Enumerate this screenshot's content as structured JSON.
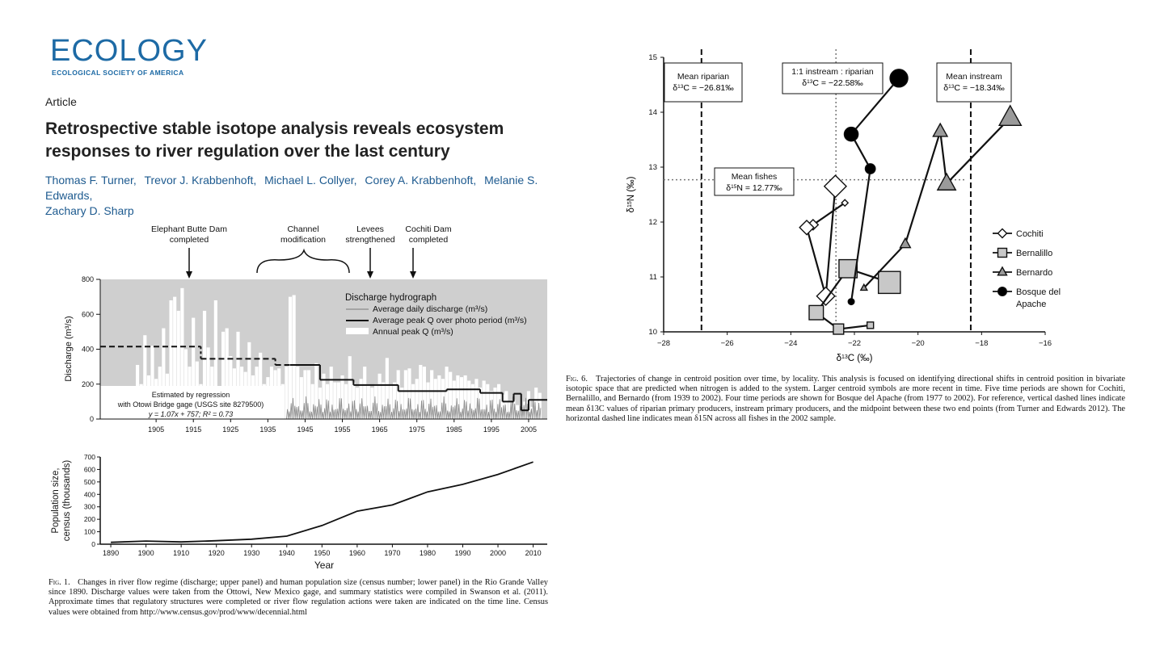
{
  "journal": {
    "logo_text": "ECOLOGY",
    "logo_sub": "ECOLOGICAL SOCIETY OF AMERICA",
    "brand_color": "#1d6aa5"
  },
  "article": {
    "type": "Article",
    "title": "Retrospective stable isotope analysis reveals ecosystem responses to river regulation over the last century",
    "authors": [
      "Thomas F. Turner,",
      "Trevor J. Krabbenhoft,",
      "Michael L. Collyer,",
      "Corey A. Krabbenhoft,",
      "Melanie S. Edwards,",
      "Zachary D. Sharp"
    ]
  },
  "chart_data": [
    {
      "type": "bar",
      "xlim": [
        1890,
        2010
      ],
      "ylim": [
        0,
        800
      ],
      "ylabel": "Discharge (m³/s)",
      "x_ticks": [
        "1905",
        "1915",
        "1925",
        "1935",
        "1945",
        "1955",
        "1965",
        "1975",
        "1985",
        "1995",
        "2005"
      ],
      "y_ticks": [
        "0",
        "200",
        "400",
        "600",
        "800"
      ],
      "annotations": [
        "Elephant Butte Dam completed",
        "Channel modification",
        "Levees strengthened",
        "Cochiti Dam completed"
      ],
      "annotation_years": [
        1917,
        1941,
        1963,
        1973
      ],
      "legend_title": "Discharge hydrograph",
      "legend": [
        "Average daily discharge (m³/s)",
        "Average peak Q over photo period (m³/s)",
        "Annual peak Q (m³/s)"
      ],
      "inset_text": [
        "Estimated by regression",
        "with Otowi Bridge gage (USGS site 8279500)",
        "y = 1.07x + 757; R² = 0.73"
      ],
      "annual_peak_q": {
        "years": [
          1900,
          1901,
          1902,
          1903,
          1904,
          1905,
          1906,
          1907,
          1908,
          1909,
          1910,
          1911,
          1912,
          1913,
          1914,
          1915,
          1916,
          1917,
          1918,
          1919,
          1920,
          1921,
          1922,
          1923,
          1924,
          1925,
          1926,
          1927,
          1928,
          1929,
          1930,
          1931,
          1932,
          1933,
          1934,
          1935,
          1936,
          1937,
          1938,
          1939,
          1940,
          1941,
          1942,
          1943,
          1944,
          1945,
          1946,
          1947,
          1948,
          1949,
          1950,
          1951,
          1952,
          1953,
          1954,
          1955,
          1956,
          1957,
          1958,
          1959,
          1960,
          1961,
          1962,
          1963,
          1964,
          1965,
          1966,
          1967,
          1968,
          1969,
          1970,
          1971,
          1972,
          1973,
          1974,
          1975,
          1976,
          1977,
          1978,
          1979,
          1980,
          1981,
          1982,
          1983,
          1984,
          1985,
          1986,
          1987,
          1988,
          1989,
          1990,
          1991,
          1992,
          1993,
          1994,
          1995,
          1996,
          1997,
          1998,
          1999,
          2000,
          2001,
          2002,
          2003,
          2004,
          2005,
          2006,
          2007,
          2008
        ],
        "values": [
          310,
          200,
          480,
          250,
          420,
          230,
          300,
          520,
          260,
          680,
          700,
          620,
          750,
          400,
          300,
          580,
          330,
          200,
          620,
          410,
          300,
          680,
          180,
          500,
          520,
          360,
          290,
          500,
          300,
          270,
          440,
          250,
          300,
          380,
          200,
          240,
          300,
          280,
          290,
          200,
          300,
          700,
          710,
          300,
          240,
          280,
          280,
          200,
          320,
          180,
          260,
          200,
          300,
          210,
          210,
          250,
          200,
          360,
          210,
          180,
          230,
          300,
          200,
          180,
          200,
          260,
          210,
          350,
          200,
          210,
          280,
          180,
          280,
          290,
          200,
          230,
          310,
          300,
          210,
          280,
          230,
          250,
          230,
          300,
          270,
          220,
          250,
          240,
          250,
          220,
          200,
          230,
          180,
          220,
          200,
          160,
          180,
          200,
          140,
          160,
          100,
          110,
          80,
          60,
          100,
          160,
          70,
          180,
          150
        ]
      },
      "average_peak_q_step": {
        "segments": [
          {
            "from": 1890,
            "to": 1917,
            "value": 415,
            "estimated": true
          },
          {
            "from": 1917,
            "to": 1937,
            "value": 345,
            "estimated": true
          },
          {
            "from": 1937,
            "to": 1941,
            "value": 310,
            "estimated": true
          },
          {
            "from": 1941,
            "to": 1949,
            "value": 310
          },
          {
            "from": 1949,
            "to": 1958,
            "value": 225
          },
          {
            "from": 1958,
            "to": 1970,
            "value": 195
          },
          {
            "from": 1970,
            "to": 1983,
            "value": 160
          },
          {
            "from": 1983,
            "to": 1992,
            "value": 170
          },
          {
            "from": 1992,
            "to": 1998,
            "value": 150
          },
          {
            "from": 1998,
            "to": 2001,
            "value": 100
          },
          {
            "from": 2001,
            "to": 2003,
            "value": 145
          },
          {
            "from": 2003,
            "to": 2005,
            "value": 50
          },
          {
            "from": 2005,
            "to": 2010,
            "value": 110
          }
        ]
      }
    },
    {
      "type": "line",
      "xlabel": "Year",
      "ylabel": "Population size, census (thousands)",
      "xlim": [
        1887,
        2014
      ],
      "ylim": [
        0,
        700
      ],
      "x_ticks": [
        "1890",
        "1900",
        "1910",
        "1920",
        "1930",
        "1940",
        "1950",
        "1960",
        "1970",
        "1980",
        "1990",
        "2000",
        "2010"
      ],
      "y_ticks": [
        "0",
        "100",
        "200",
        "300",
        "400",
        "500",
        "600",
        "700"
      ],
      "x": [
        1890,
        1900,
        1910,
        1920,
        1930,
        1940,
        1950,
        1960,
        1970,
        1980,
        1990,
        2000,
        2010
      ],
      "y": [
        15,
        25,
        18,
        28,
        40,
        65,
        150,
        265,
        315,
        420,
        480,
        560,
        660
      ]
    },
    {
      "type": "scatter",
      "xlabel": "δ13C (‰)",
      "ylabel": "δ15N (‰)",
      "xlim": [
        -28,
        -16
      ],
      "ylim": [
        10,
        15
      ],
      "x_ticks": [
        "−28",
        "−26",
        "−24",
        "−22",
        "−20",
        "−18",
        "−16"
      ],
      "y_ticks": [
        "10",
        "11",
        "12",
        "13",
        "14",
        "15"
      ],
      "reference_lines": {
        "vertical": [
          -26.81,
          -22.58,
          -18.34
        ],
        "horizontal": [
          12.77
        ]
      },
      "boxes": [
        {
          "line1": "Mean riparian",
          "line2": "δ13C = −26.81‰"
        },
        {
          "line1": "1:1 instream : riparian",
          "line2": "δ13C = −22.58‰"
        },
        {
          "line1": "Mean instream",
          "line2": "δ13C = −18.34‰"
        },
        {
          "line1": "Mean fishes",
          "line2": "δ15N = 12.77‰"
        }
      ],
      "series": [
        {
          "name": "Cochiti",
          "marker": "diamond",
          "x": [
            -22.3,
            -23.3,
            -23.5,
            -22.9,
            -22.6
          ],
          "y": [
            12.35,
            11.95,
            11.9,
            10.65,
            12.65
          ]
        },
        {
          "name": "Bernalillo",
          "marker": "square",
          "x": [
            -21.5,
            -22.5,
            -23.2,
            -22.2,
            -20.9
          ],
          "y": [
            10.12,
            10.05,
            10.35,
            11.15,
            10.9
          ]
        },
        {
          "name": "Bernardo",
          "marker": "triangle",
          "x": [
            -21.7,
            -20.4,
            -19.3,
            -19.1,
            -17.1
          ],
          "y": [
            10.8,
            11.6,
            13.65,
            12.7,
            13.9
          ]
        },
        {
          "name": "Bosque del Apache",
          "marker": "circle",
          "x": [
            -22.1,
            -21.5,
            -22.1,
            -20.6
          ],
          "y": [
            10.55,
            12.97,
            13.6,
            14.62
          ]
        }
      ]
    }
  ],
  "fig1": {
    "caption_label": "Fig. 1.",
    "caption_text": "Changes in river flow regime (discharge; upper panel) and human population size (census number; lower panel) in the Rio Grande Valley since 1890. Discharge values were taken from the Ottowi, New Mexico gage, and summary statistics were compiled in Swanson et al. (2011). Approximate times that regulatory structures were completed or river flow regulation actions were taken are indicated on the time line. Census values were obtained from http://www.census.gov/prod/www/decennial.html"
  },
  "fig6": {
    "caption_label": "Fig. 6.",
    "caption_text": "Trajectories of change in centroid position over time, by locality. This analysis is focused on identifying directional shifts in centroid position in bivariate isotopic space that are predicted when nitrogen is added to the system. Larger centroid symbols are more recent in time. Five time periods are shown for Cochiti, Bernalillo, and Bernardo (from 1939 to 2002). Four time periods are shown for Bosque del Apache (from 1977 to 2002). For reference, vertical dashed lines indicate mean δ13C values of riparian primary producers, instream primary producers, and the midpoint between these two end points (from Turner and Edwards 2012). The horizontal dashed line indicates mean δ15N across all fishes in the 2002 sample."
  }
}
